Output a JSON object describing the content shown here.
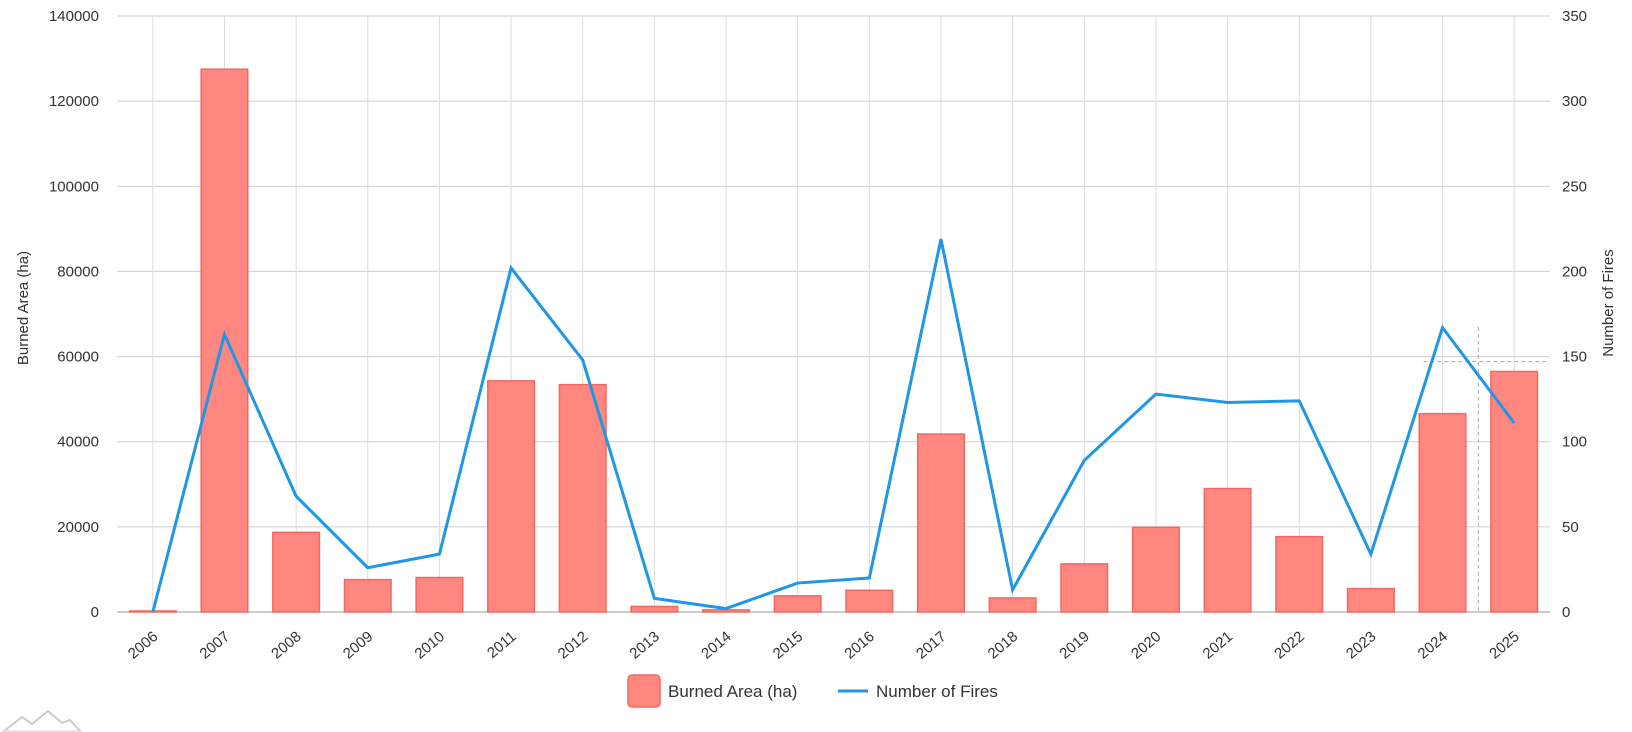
{
  "chart_data": {
    "type": "bar",
    "categories": [
      "2006",
      "2007",
      "2008",
      "2009",
      "2010",
      "2011",
      "2012",
      "2013",
      "2014",
      "2015",
      "2016",
      "2017",
      "2018",
      "2019",
      "2020",
      "2021",
      "2022",
      "2023",
      "2024",
      "2025"
    ],
    "series": [
      {
        "name": "Burned Area (ha)",
        "type": "bar",
        "axis": "left",
        "color": "#ff8780",
        "values": [
          50,
          127500,
          18700,
          7600,
          8100,
          54300,
          53400,
          1300,
          500,
          3800,
          5100,
          41800,
          3300,
          11300,
          19900,
          29000,
          17700,
          5500,
          46600,
          56500
        ]
      },
      {
        "name": "Number of Fires",
        "type": "line",
        "axis": "right",
        "color": "#1f96e6",
        "values": [
          0,
          163,
          68,
          26,
          34,
          202,
          148,
          8,
          2,
          17,
          20,
          219,
          13,
          89,
          128,
          123,
          124,
          34,
          167,
          111
        ]
      }
    ],
    "y_left": {
      "label": "Burned Area (ha)",
      "range": [
        0,
        140000
      ],
      "ticks": [
        "0",
        "20000",
        "40000",
        "60000",
        "80000",
        "100000",
        "120000",
        "140000"
      ]
    },
    "y_right": {
      "label": "Number of Fires",
      "range": [
        0,
        350
      ],
      "ticks": [
        "0",
        "50",
        "100",
        "150",
        "200",
        "250",
        "300",
        "350"
      ]
    },
    "grid": true,
    "legend_position": "bottom-center",
    "x_label_rotation": "angled"
  },
  "cursor": {
    "category": "2024",
    "value_left": 58800
  },
  "logo_icon": "mountain-logo-icon"
}
